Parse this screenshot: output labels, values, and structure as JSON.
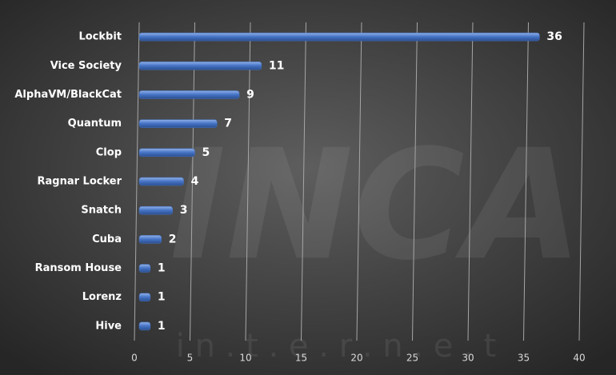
{
  "chart_data": {
    "type": "bar",
    "orientation": "horizontal",
    "categories": [
      "Lockbit",
      "Vice Society",
      "AlphaVM/BlackCat",
      "Quantum",
      "Clop",
      "Ragnar Locker",
      "Snatch",
      "Cuba",
      "Ransom House",
      "Lorenz",
      "Hive"
    ],
    "values": [
      36,
      11,
      9,
      7,
      5,
      4,
      3,
      2,
      1,
      1,
      1
    ],
    "color": "#4472c4",
    "xlim": [
      0,
      40
    ],
    "xticks": [
      0,
      5,
      10,
      15,
      20,
      25,
      30,
      35,
      40
    ],
    "grid": true,
    "watermark": "INCA",
    "watermark_subtitle": "i n . t . e . r . n . e . t"
  }
}
